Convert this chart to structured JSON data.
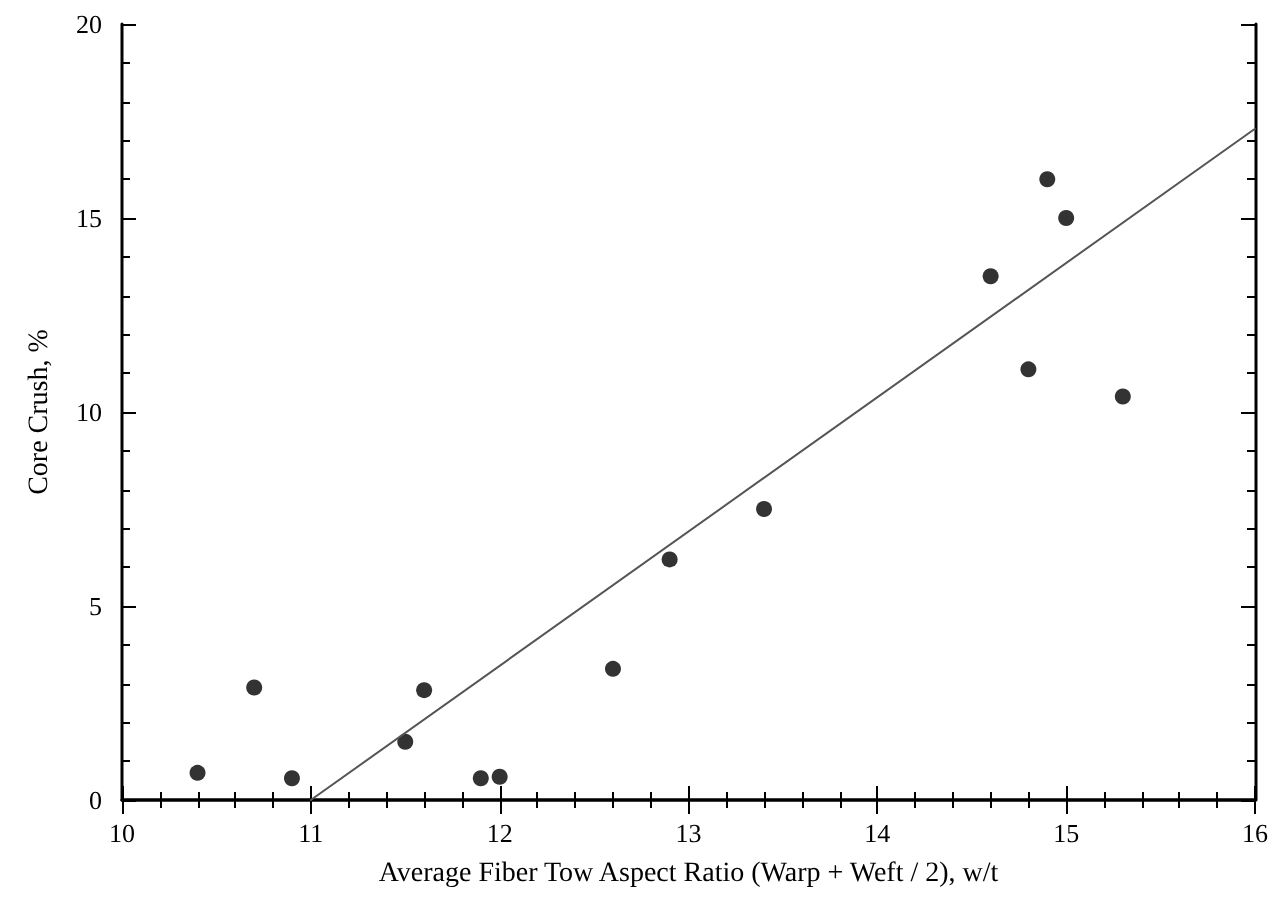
{
  "chart_data": {
    "type": "scatter",
    "xlabel": "Average Fiber Tow Aspect Ratio (Warp + Weft / 2), w/t",
    "ylabel": "Core Crush, %",
    "xlim": [
      10,
      16
    ],
    "xticks": [
      10,
      11,
      12,
      13,
      14,
      15,
      16
    ],
    "ylim": [
      0,
      20
    ],
    "yticks": [
      0,
      5,
      10,
      15,
      20
    ],
    "grid": false,
    "marker": "circle",
    "series": [
      {
        "color": "#000000",
        "x": [
          10.4,
          10.7,
          10.9,
          11.5,
          11.6,
          11.9,
          12.0,
          12.6,
          12.9,
          13.4,
          14.6,
          14.9,
          15.0,
          14.8,
          15.3
        ],
        "values": [
          0.7,
          2.9,
          0.56,
          1.5,
          2.83,
          0.56,
          0.6,
          3.38,
          6.2,
          7.5,
          13.5,
          16.0,
          15.0,
          11.1,
          10.4
        ]
      },
      {
        "type": "line",
        "color": "#555555",
        "marker": "none",
        "line_style": "solid",
        "x": [
          11,
          16
        ],
        "values": [
          0,
          17.3
        ]
      }
    ]
  }
}
